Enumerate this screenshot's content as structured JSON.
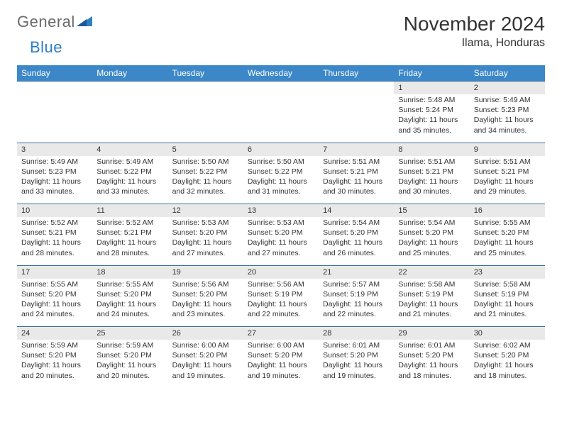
{
  "brand": {
    "part1": "General",
    "part2": "Blue"
  },
  "title": "November 2024",
  "location": "Ilama, Honduras",
  "colors": {
    "header_bg": "#3b87c8",
    "header_text": "#ffffff",
    "daynum_bg": "#e9e9e9",
    "border": "#3b6fa0",
    "text": "#333333",
    "logo_gray": "#6a6a6a",
    "logo_blue": "#2f7fc1",
    "page_bg": "#ffffff"
  },
  "typography": {
    "month_title_fontsize": 28,
    "location_fontsize": 16,
    "header_fontsize": 12,
    "daynum_fontsize": 11,
    "cell_fontsize": 10.5,
    "logo_fontsize": 22
  },
  "days_of_week": [
    "Sunday",
    "Monday",
    "Tuesday",
    "Wednesday",
    "Thursday",
    "Friday",
    "Saturday"
  ],
  "weeks": [
    [
      null,
      null,
      null,
      null,
      null,
      {
        "n": "1",
        "sr": "Sunrise: 5:48 AM",
        "ss": "Sunset: 5:24 PM",
        "dl": "Daylight: 11 hours and 35 minutes."
      },
      {
        "n": "2",
        "sr": "Sunrise: 5:49 AM",
        "ss": "Sunset: 5:23 PM",
        "dl": "Daylight: 11 hours and 34 minutes."
      }
    ],
    [
      {
        "n": "3",
        "sr": "Sunrise: 5:49 AM",
        "ss": "Sunset: 5:23 PM",
        "dl": "Daylight: 11 hours and 33 minutes."
      },
      {
        "n": "4",
        "sr": "Sunrise: 5:49 AM",
        "ss": "Sunset: 5:22 PM",
        "dl": "Daylight: 11 hours and 33 minutes."
      },
      {
        "n": "5",
        "sr": "Sunrise: 5:50 AM",
        "ss": "Sunset: 5:22 PM",
        "dl": "Daylight: 11 hours and 32 minutes."
      },
      {
        "n": "6",
        "sr": "Sunrise: 5:50 AM",
        "ss": "Sunset: 5:22 PM",
        "dl": "Daylight: 11 hours and 31 minutes."
      },
      {
        "n": "7",
        "sr": "Sunrise: 5:51 AM",
        "ss": "Sunset: 5:21 PM",
        "dl": "Daylight: 11 hours and 30 minutes."
      },
      {
        "n": "8",
        "sr": "Sunrise: 5:51 AM",
        "ss": "Sunset: 5:21 PM",
        "dl": "Daylight: 11 hours and 30 minutes."
      },
      {
        "n": "9",
        "sr": "Sunrise: 5:51 AM",
        "ss": "Sunset: 5:21 PM",
        "dl": "Daylight: 11 hours and 29 minutes."
      }
    ],
    [
      {
        "n": "10",
        "sr": "Sunrise: 5:52 AM",
        "ss": "Sunset: 5:21 PM",
        "dl": "Daylight: 11 hours and 28 minutes."
      },
      {
        "n": "11",
        "sr": "Sunrise: 5:52 AM",
        "ss": "Sunset: 5:21 PM",
        "dl": "Daylight: 11 hours and 28 minutes."
      },
      {
        "n": "12",
        "sr": "Sunrise: 5:53 AM",
        "ss": "Sunset: 5:20 PM",
        "dl": "Daylight: 11 hours and 27 minutes."
      },
      {
        "n": "13",
        "sr": "Sunrise: 5:53 AM",
        "ss": "Sunset: 5:20 PM",
        "dl": "Daylight: 11 hours and 27 minutes."
      },
      {
        "n": "14",
        "sr": "Sunrise: 5:54 AM",
        "ss": "Sunset: 5:20 PM",
        "dl": "Daylight: 11 hours and 26 minutes."
      },
      {
        "n": "15",
        "sr": "Sunrise: 5:54 AM",
        "ss": "Sunset: 5:20 PM",
        "dl": "Daylight: 11 hours and 25 minutes."
      },
      {
        "n": "16",
        "sr": "Sunrise: 5:55 AM",
        "ss": "Sunset: 5:20 PM",
        "dl": "Daylight: 11 hours and 25 minutes."
      }
    ],
    [
      {
        "n": "17",
        "sr": "Sunrise: 5:55 AM",
        "ss": "Sunset: 5:20 PM",
        "dl": "Daylight: 11 hours and 24 minutes."
      },
      {
        "n": "18",
        "sr": "Sunrise: 5:55 AM",
        "ss": "Sunset: 5:20 PM",
        "dl": "Daylight: 11 hours and 24 minutes."
      },
      {
        "n": "19",
        "sr": "Sunrise: 5:56 AM",
        "ss": "Sunset: 5:20 PM",
        "dl": "Daylight: 11 hours and 23 minutes."
      },
      {
        "n": "20",
        "sr": "Sunrise: 5:56 AM",
        "ss": "Sunset: 5:19 PM",
        "dl": "Daylight: 11 hours and 22 minutes."
      },
      {
        "n": "21",
        "sr": "Sunrise: 5:57 AM",
        "ss": "Sunset: 5:19 PM",
        "dl": "Daylight: 11 hours and 22 minutes."
      },
      {
        "n": "22",
        "sr": "Sunrise: 5:58 AM",
        "ss": "Sunset: 5:19 PM",
        "dl": "Daylight: 11 hours and 21 minutes."
      },
      {
        "n": "23",
        "sr": "Sunrise: 5:58 AM",
        "ss": "Sunset: 5:19 PM",
        "dl": "Daylight: 11 hours and 21 minutes."
      }
    ],
    [
      {
        "n": "24",
        "sr": "Sunrise: 5:59 AM",
        "ss": "Sunset: 5:20 PM",
        "dl": "Daylight: 11 hours and 20 minutes."
      },
      {
        "n": "25",
        "sr": "Sunrise: 5:59 AM",
        "ss": "Sunset: 5:20 PM",
        "dl": "Daylight: 11 hours and 20 minutes."
      },
      {
        "n": "26",
        "sr": "Sunrise: 6:00 AM",
        "ss": "Sunset: 5:20 PM",
        "dl": "Daylight: 11 hours and 19 minutes."
      },
      {
        "n": "27",
        "sr": "Sunrise: 6:00 AM",
        "ss": "Sunset: 5:20 PM",
        "dl": "Daylight: 11 hours and 19 minutes."
      },
      {
        "n": "28",
        "sr": "Sunrise: 6:01 AM",
        "ss": "Sunset: 5:20 PM",
        "dl": "Daylight: 11 hours and 19 minutes."
      },
      {
        "n": "29",
        "sr": "Sunrise: 6:01 AM",
        "ss": "Sunset: 5:20 PM",
        "dl": "Daylight: 11 hours and 18 minutes."
      },
      {
        "n": "30",
        "sr": "Sunrise: 6:02 AM",
        "ss": "Sunset: 5:20 PM",
        "dl": "Daylight: 11 hours and 18 minutes."
      }
    ]
  ]
}
